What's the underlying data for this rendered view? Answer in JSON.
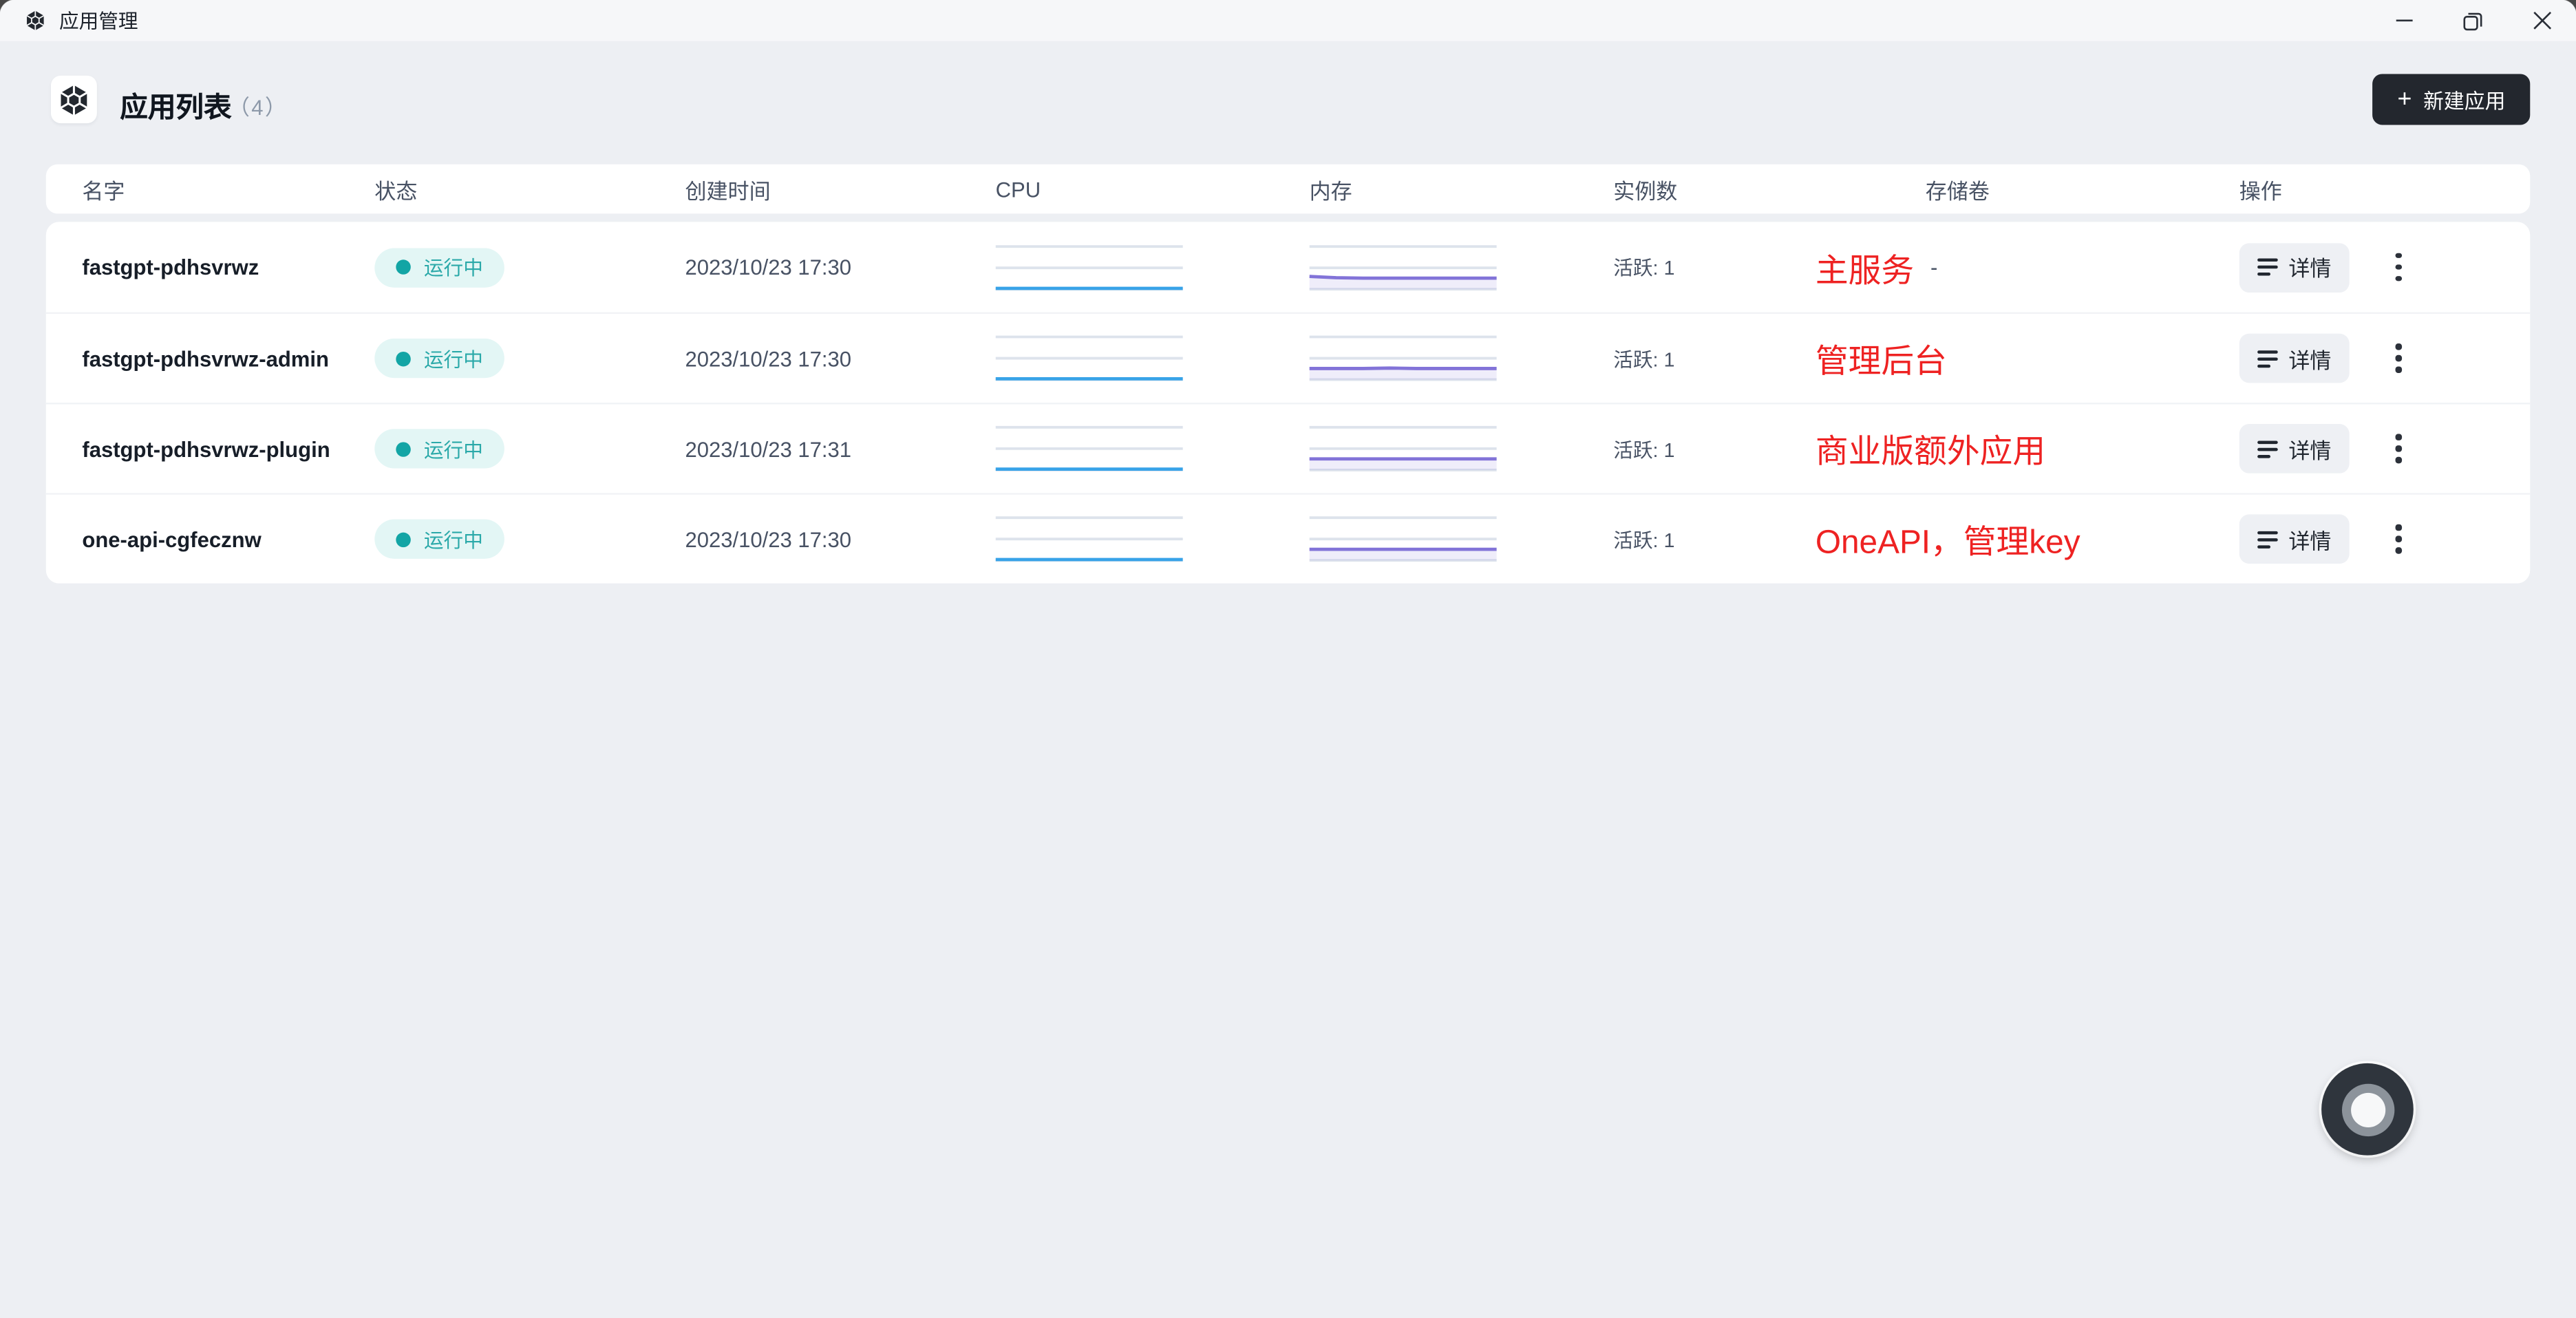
{
  "titlebar": {
    "app_title": "应用管理"
  },
  "header": {
    "title": "应用列表",
    "count": "（4）",
    "new_app_label": "新建应用",
    "plus": "+"
  },
  "table": {
    "columns": [
      "名字",
      "状态",
      "创建时间",
      "CPU",
      "内存",
      "实例数",
      "存储卷",
      "操作"
    ]
  },
  "rows": [
    {
      "name": "fastgpt-pdhsvrwz",
      "status": "运行中",
      "created": "2023/10/23 17:30",
      "instances": "活跃: 1",
      "storage": "-",
      "annotation": "主服务",
      "detail_label": "详情",
      "cpu_series": [
        2,
        2,
        2,
        2,
        2,
        2,
        2,
        2
      ],
      "mem_series": [
        30,
        27,
        26,
        26,
        26,
        26,
        26,
        26
      ]
    },
    {
      "name": "fastgpt-pdhsvrwz-admin",
      "status": "运行中",
      "created": "2023/10/23 17:30",
      "instances": "活跃: 1",
      "storage": "",
      "annotation": "管理后台",
      "detail_label": "详情",
      "cpu_series": [
        2,
        2,
        2,
        2,
        2,
        2,
        2,
        2
      ],
      "mem_series": [
        26,
        26,
        26,
        27,
        26,
        26,
        26,
        26
      ]
    },
    {
      "name": "fastgpt-pdhsvrwz-plugin",
      "status": "运行中",
      "created": "2023/10/23 17:31",
      "instances": "活跃: 1",
      "storage": "",
      "annotation": "商业版额外应用",
      "detail_label": "详情",
      "cpu_series": [
        2,
        2,
        2,
        2,
        2,
        2,
        2,
        2
      ],
      "mem_series": [
        26,
        26,
        26,
        26,
        26,
        26,
        26,
        26
      ]
    },
    {
      "name": "one-api-cgfecznw",
      "status": "运行中",
      "created": "2023/10/23 17:30",
      "instances": "活跃: 1",
      "storage": "",
      "annotation": "OneAPI，管理key",
      "detail_label": "详情",
      "cpu_series": [
        2,
        2,
        2,
        2,
        2,
        2,
        2,
        2
      ],
      "mem_series": [
        26,
        26,
        26,
        26,
        26,
        26,
        26,
        26
      ]
    }
  ],
  "colors": {
    "accent_dark": "#23272e",
    "badge_bg": "#e3f6f5",
    "badge_dot": "#13a5a5",
    "badge_text": "#2ba9a9",
    "cpu_line": "#38a3e8",
    "mem_line": "#8273d8",
    "mem_fill": "rgba(130,115,216,0.13)",
    "gridline": "#dde3ec",
    "annotation_red": "#ee2222"
  }
}
